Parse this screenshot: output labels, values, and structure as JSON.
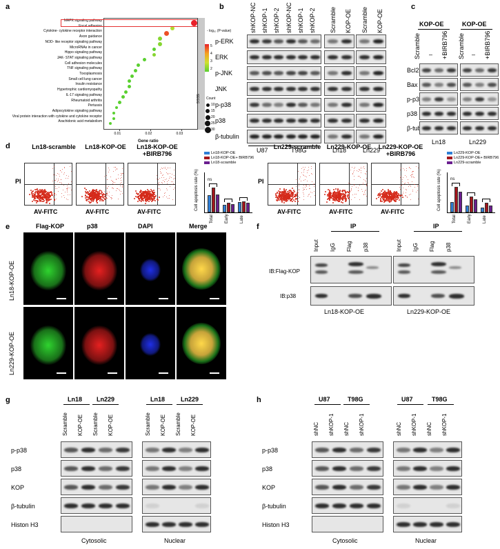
{
  "panel_letters": {
    "a": "a",
    "b": "b",
    "c": "c",
    "d": "d",
    "e": "e",
    "f": "f",
    "g": "g",
    "h": "h"
  },
  "panel_a": {
    "pathways": [
      "MAPK signaling pathway",
      "Focal adhesion",
      "Cytokine- cytokine receptor interaction",
      "Axon guidance",
      "NOD- like receptor signaling pathway",
      "MicroRNAs in cancer",
      "Hippo signaling pathway",
      "JAK- STAT signaling pathway",
      "Cell adhesion molecules",
      "TNF signaling pathway",
      "Toxoplasmosis",
      "Small cell lung cancer",
      "Insulin resistance",
      "Hypertrophic cardiomyopathy",
      "IL-17 signaling pathway",
      "Rheumatoid arthritis",
      "Pertussis",
      "Adipocytokine signaling pathway",
      "Viral protein interaction with cytokine and cytokine receptor",
      "Arachidonic acid metabolism"
    ],
    "gene_ratio": [
      0.034,
      0.027,
      0.025,
      0.023,
      0.023,
      0.021,
      0.021,
      0.018,
      0.016,
      0.015,
      0.014,
      0.013,
      0.013,
      0.012,
      0.011,
      0.01,
      0.009,
      0.008,
      0.008,
      0.007
    ],
    "log_p": [
      6,
      3,
      5.5,
      2.5,
      2.5,
      2,
      2.5,
      2,
      2,
      2,
      2,
      2,
      2,
      2,
      2,
      2,
      2,
      2,
      2,
      2
    ],
    "count": [
      30,
      15,
      20,
      15,
      15,
      10,
      10,
      10,
      10,
      10,
      10,
      10,
      10,
      10,
      10,
      10,
      5,
      5,
      5,
      5
    ],
    "xlabel": "Gene ratio",
    "xticks": [
      "0.01",
      "0.02",
      "0.03"
    ],
    "legend_title": "- log₁₀ (P-value)",
    "legend_values": [
      "5",
      "4",
      "3",
      "2"
    ],
    "count_title": "Count",
    "count_values": [
      "10",
      "15",
      "20",
      "25",
      "30"
    ],
    "strip_label": "SEGG"
  },
  "panel_b": {
    "lanes_left": [
      "shKOP-NC",
      "shKOP-1",
      "shKOP-2",
      "shKOP-NC",
      "shKOP-1",
      "shKOP-2"
    ],
    "lanes_mid": [
      "Scramble",
      "KOP-OE"
    ],
    "lanes_right": [
      "Scramble",
      "KOP-OE"
    ],
    "rows": [
      "p-ERK",
      "ERK",
      "p-JNK",
      "JNK",
      "p-p38",
      "p38",
      "β-tubulin"
    ],
    "cell_lines": [
      "U87",
      "T98G",
      "Ln18",
      "Ln229"
    ]
  },
  "panel_c": {
    "groups": [
      "KOP-OE",
      "KOP-OE"
    ],
    "lanes": [
      "Scramble",
      "–",
      "+BIRB796",
      "Scramble",
      "–",
      "+BIRB796"
    ],
    "rows": [
      "Bcl2",
      "Bax",
      "p-p38",
      "p38",
      "β-tubulin"
    ],
    "cell_lines": [
      "Ln18",
      "Ln229"
    ]
  },
  "panel_d": {
    "left_titles": [
      "Ln18-scramble",
      "Ln18-KOP-OE",
      "Ln18-KOP-OE\n+BIRB796"
    ],
    "right_titles": [
      "Ln229-scramble",
      "Ln229-KOP-OE",
      "Ln229-KOP-OE\n+BIRB796"
    ],
    "ylabel": "PI",
    "xlabel": "AV-FITC",
    "bar_ylabel": "Cell apoptosis rate (%)",
    "left_legend": [
      "Ln18-KOP-OE",
      "Ln18-KOP-OE+ BIRB796",
      "Ln18-scramble"
    ],
    "right_legend": [
      "Ln229-KOP-OE",
      "Ln229-KOP-OE+ BIRB796",
      "Ln229-scramble"
    ],
    "categories": [
      "Total",
      "Early",
      "Late"
    ],
    "ns": "ns",
    "colors": [
      "#2f7fd6",
      "#a3161c",
      "#6a1e8f"
    ]
  },
  "chart_data": [
    {
      "type": "bar",
      "categories": [
        "Total",
        "Early",
        "Late"
      ],
      "series": [
        {
          "name": "Ln18-KOP-OE",
          "values": [
            6.5,
            2.8,
            3.8
          ]
        },
        {
          "name": "Ln18-KOP-OE+ BIRB796",
          "values": [
            9.2,
            3.6,
            4.2
          ]
        },
        {
          "name": "Ln18-scramble",
          "values": [
            6.6,
            3.0,
            3.5
          ]
        }
      ],
      "ylabel": "Cell apoptosis rate (%)",
      "ylim": [
        0,
        15
      ]
    },
    {
      "type": "bar",
      "categories": [
        "Total",
        "Early",
        "Late"
      ],
      "series": [
        {
          "name": "Ln229-KOP-OE",
          "values": [
            3.8,
            2.7,
            1.9
          ]
        },
        {
          "name": "Ln229-KOP-OE+ BIRB796",
          "values": [
            9.5,
            6.0,
            3.7
          ]
        },
        {
          "name": "Ln229-scramble",
          "values": [
            7.8,
            5.0,
            2.6
          ]
        }
      ],
      "ylabel": "Cell apoptosis rate (%)",
      "ylim": [
        0,
        15
      ]
    }
  ],
  "panel_e": {
    "columns": [
      "Flag-KOP",
      "p38",
      "DAPI",
      "Merge"
    ],
    "rows": [
      "Ln18-KOP-OE",
      "Ln229-KOP-OE"
    ]
  },
  "panel_f": {
    "ip_label": "IP",
    "lanes": [
      "Input",
      "IgG",
      "Flag",
      "p38"
    ],
    "rows": [
      "IB:Flag-KOP",
      "IB:p38"
    ],
    "captions": [
      "Ln18-KOP-OE",
      "Ln229-KOP-OE"
    ]
  },
  "panel_g": {
    "groups": [
      "Ln18",
      "Ln229",
      "Ln18",
      "Ln229"
    ],
    "lanes": [
      "Scramble",
      "KOP-OE",
      "Scramble",
      "KOP-OE",
      "Scramble",
      "KOP-OE",
      "Scramble",
      "KOP-OE"
    ],
    "rows": [
      "p-p38",
      "p38",
      "KOP",
      "β-tubulin",
      "Histon H3"
    ],
    "fractions": [
      "Cytosolic",
      "Nuclear"
    ]
  },
  "panel_h": {
    "groups": [
      "U87",
      "T98G",
      "U87",
      "T98G"
    ],
    "lanes": [
      "shNC",
      "shKOP-1",
      "shNC",
      "shKOP-1",
      "shNC",
      "shKOP-1",
      "shNC",
      "shKOP-1"
    ],
    "rows": [
      "p-p38",
      "p38",
      "KOP",
      "β-tubulin",
      "Histon H3"
    ],
    "fractions": [
      "Cytosolic",
      "Nuclear"
    ]
  }
}
